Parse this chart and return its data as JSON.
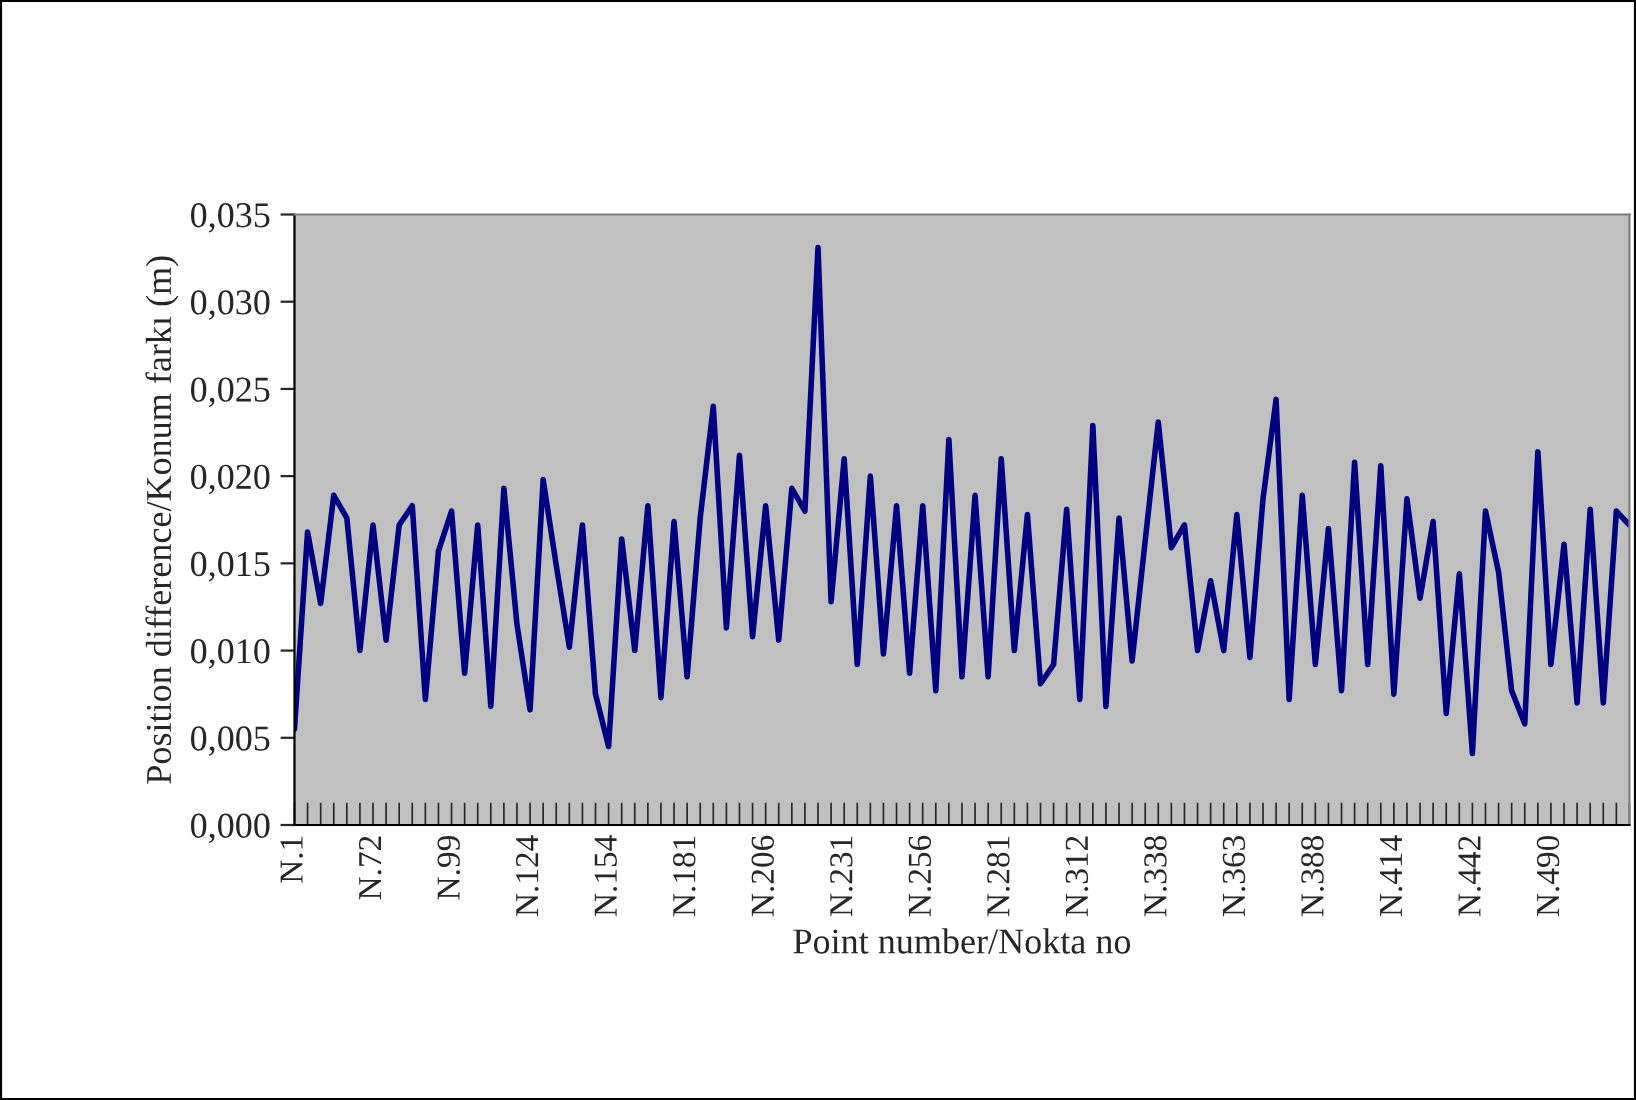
{
  "chart_data": {
    "type": "line",
    "xlabel": "Point number/Nokta no",
    "ylabel": "Position difference/Konum farkı (m)",
    "categories": [
      "N.1",
      null,
      null,
      null,
      null,
      null,
      "N.72",
      null,
      null,
      null,
      null,
      null,
      "N.99",
      null,
      null,
      null,
      null,
      null,
      "N.124",
      null,
      null,
      null,
      null,
      null,
      "N.154",
      null,
      null,
      null,
      null,
      null,
      "N.181",
      null,
      null,
      null,
      null,
      null,
      "N.206",
      null,
      null,
      null,
      null,
      null,
      "N.231",
      null,
      null,
      null,
      null,
      null,
      "N.256",
      null,
      null,
      null,
      null,
      null,
      "N.281",
      null,
      null,
      null,
      null,
      null,
      "N.312",
      null,
      null,
      null,
      null,
      null,
      "N.338",
      null,
      null,
      null,
      null,
      null,
      "N.363",
      null,
      null,
      null,
      null,
      null,
      "N.388",
      null,
      null,
      null,
      null,
      null,
      "N.414",
      null,
      null,
      null,
      null,
      null,
      "N.442",
      null,
      null,
      null,
      null,
      null,
      "N.490",
      null,
      null,
      null,
      null,
      null,
      null
    ],
    "series": [
      {
        "color": "#000080",
        "values": [
          0.0055,
          0.0168,
          0.0127,
          0.0189,
          0.0176,
          0.01,
          0.0172,
          0.0106,
          0.0172,
          0.0183,
          0.0072,
          0.0157,
          0.018,
          0.0087,
          0.0172,
          0.0068,
          0.0193,
          0.0115,
          0.0066,
          0.0198,
          0.0149,
          0.0102,
          0.0172,
          0.0075,
          0.0045,
          0.0164,
          0.01,
          0.0183,
          0.0073,
          0.0174,
          0.0085,
          0.0176,
          0.024,
          0.0113,
          0.0212,
          0.0108,
          0.0183,
          0.0106,
          0.0193,
          0.018,
          0.0331,
          0.0128,
          0.021,
          0.0092,
          0.02,
          0.0098,
          0.0183,
          0.0087,
          0.0183,
          0.0077,
          0.0221,
          0.0085,
          0.0189,
          0.0085,
          0.021,
          0.01,
          0.0178,
          0.0081,
          0.0092,
          0.0181,
          0.0072,
          0.0229,
          0.0068,
          0.0176,
          0.0094,
          0.0163,
          0.0231,
          0.0159,
          0.0172,
          0.01,
          0.014,
          0.01,
          0.0178,
          0.0096,
          0.0187,
          0.0244,
          0.0072,
          0.0189,
          0.0092,
          0.017,
          0.0077,
          0.0208,
          0.0092,
          0.0206,
          0.0075,
          0.0187,
          0.013,
          0.0174,
          0.0064,
          0.0144,
          0.0041,
          0.018,
          0.0145,
          0.0077,
          0.0058,
          0.0214,
          0.0092,
          0.0161,
          0.007,
          0.0181,
          0.007,
          0.018,
          0.0172
        ]
      }
    ],
    "ylim": [
      0,
      0.035
    ],
    "yticks": [
      {
        "value": 0,
        "label": "0,000"
      },
      {
        "value": 0.005,
        "label": "0,005"
      },
      {
        "value": 0.01,
        "label": "0,010"
      },
      {
        "value": 0.015,
        "label": "0,015"
      },
      {
        "value": 0.02,
        "label": "0,020"
      },
      {
        "value": 0.025,
        "label": "0,025"
      },
      {
        "value": 0.03,
        "label": "0,030"
      },
      {
        "value": 0.035,
        "label": "0,035"
      }
    ],
    "grid": false,
    "marker": "none",
    "line_style": "solid"
  }
}
